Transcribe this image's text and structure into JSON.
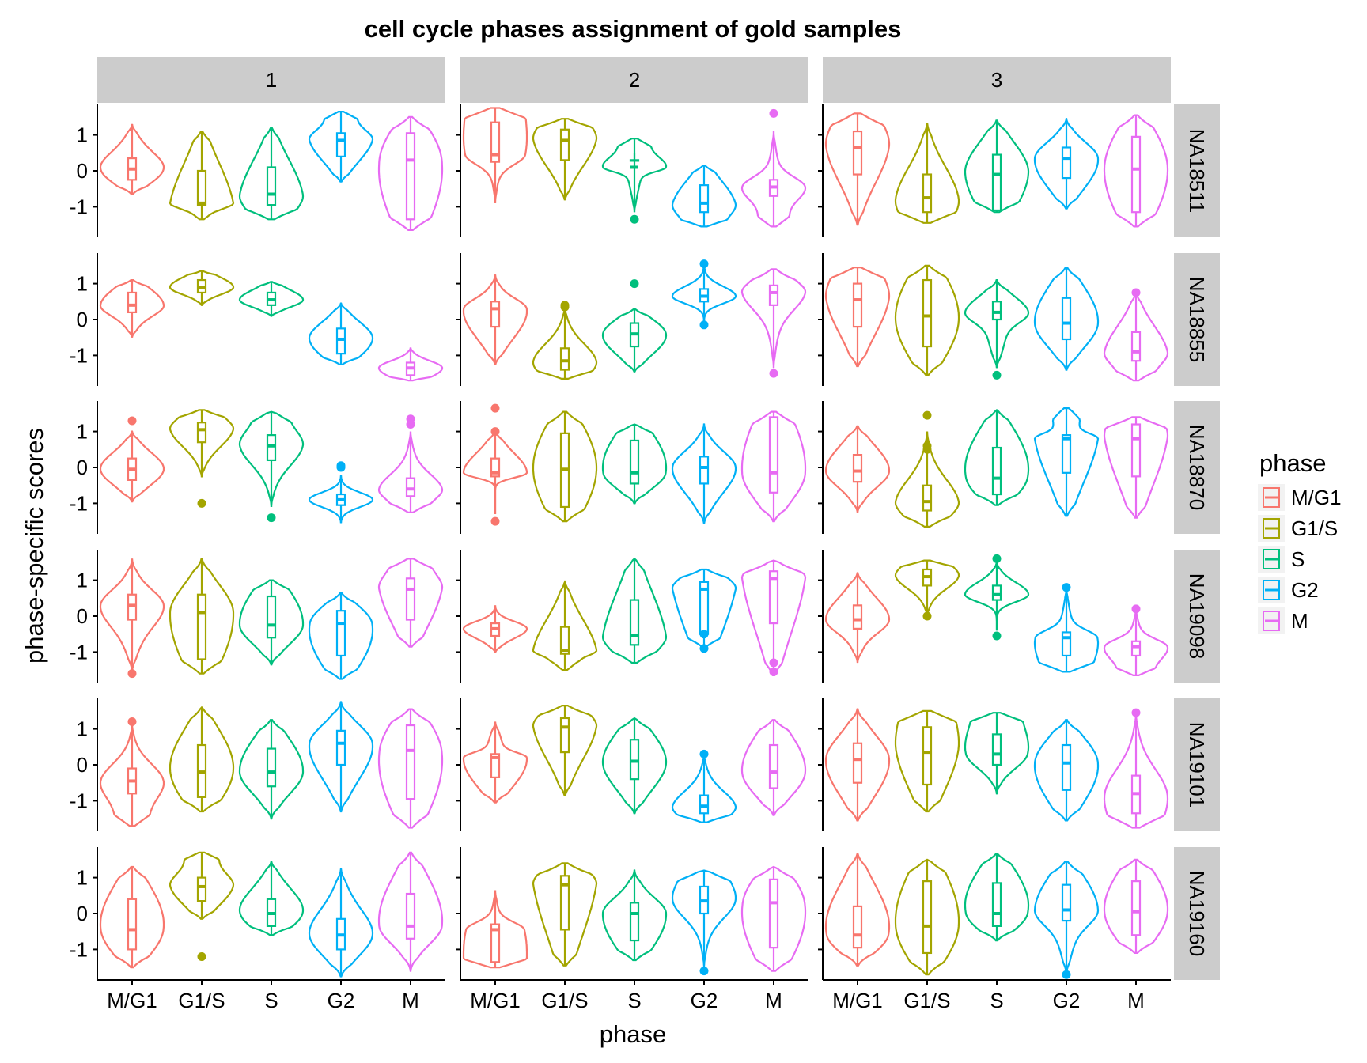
{
  "chart_data": {
    "type": "violin",
    "title": "cell cycle phases assignment of gold samples",
    "xlabel": "phase",
    "ylabel": "phase-specific scores",
    "ylim": [
      -1.85,
      1.85
    ],
    "yticks": [
      {
        "v": 1,
        "label": "1"
      },
      {
        "v": 0,
        "label": "0"
      },
      {
        "v": -1,
        "label": "-1"
      }
    ],
    "categories": [
      "M/G1",
      "G1/S",
      "S",
      "G2",
      "M"
    ],
    "col_facets": [
      "1",
      "2",
      "3"
    ],
    "row_facets": [
      "NA18511",
      "NA18855",
      "NA18870",
      "NA19098",
      "NA19101",
      "NA19160"
    ],
    "legend": {
      "title": "phase",
      "position": "right",
      "entries": [
        {
          "label": "M/G1",
          "color": "#F8766D"
        },
        {
          "label": "G1/S",
          "color": "#A3A500"
        },
        {
          "label": "S",
          "color": "#00BF7D"
        },
        {
          "label": "G2",
          "color": "#00B0F6"
        },
        {
          "label": "M",
          "color": "#E76BF3"
        }
      ]
    },
    "colors": {
      "strip_bg": "#CCCCCC",
      "axis": "#000000"
    },
    "stats_format": "per phase: [min, q1, median, q3, max, width_shape] where width_shape: 0=symmetric, 1=wide-top, -1=wide-bottom, 2=concentrated-center",
    "panels": [
      {
        "row": "NA18511",
        "col": "1",
        "stats": [
          [
            -0.65,
            -0.25,
            0.05,
            0.35,
            1.3,
            0
          ],
          [
            -1.35,
            -0.95,
            -0.9,
            0.0,
            1.1,
            -1
          ],
          [
            -1.35,
            -0.95,
            -0.65,
            0.1,
            1.2,
            -1
          ],
          [
            -0.3,
            0.4,
            0.85,
            1.05,
            1.65,
            1
          ],
          [
            -1.65,
            -1.35,
            0.3,
            1.05,
            1.5,
            0
          ]
        ],
        "outliers": [
          [],
          [],
          [],
          [],
          []
        ]
      },
      {
        "row": "NA18855",
        "col": "1",
        "stats": [
          [
            -0.5,
            0.2,
            0.4,
            0.75,
            1.1,
            0
          ],
          [
            0.4,
            0.75,
            0.9,
            1.1,
            1.35,
            2
          ],
          [
            0.1,
            0.4,
            0.55,
            0.75,
            1.05,
            2
          ],
          [
            -1.25,
            -0.95,
            -0.55,
            -0.25,
            0.45,
            0
          ],
          [
            -1.7,
            -1.55,
            -1.35,
            -1.2,
            -0.8,
            2
          ]
        ],
        "outliers": [
          [],
          [],
          [],
          [],
          []
        ]
      },
      {
        "row": "NA18870",
        "col": "1",
        "stats": [
          [
            -0.95,
            -0.35,
            -0.05,
            0.25,
            1.0,
            0
          ],
          [
            -0.25,
            0.7,
            1.05,
            1.25,
            1.6,
            1
          ],
          [
            -1.1,
            0.2,
            0.6,
            0.9,
            1.55,
            1
          ],
          [
            -1.55,
            -1.05,
            -0.9,
            -0.75,
            -0.2,
            2
          ],
          [
            -1.25,
            -0.8,
            -0.6,
            -0.3,
            1.0,
            -1
          ]
        ],
        "outliers": [
          [
            1.3
          ],
          [
            -1.0
          ],
          [
            -1.4
          ],
          [
            0.0,
            0.05
          ],
          [
            1.2,
            1.35
          ]
        ]
      },
      {
        "row": "NA19098",
        "col": "1",
        "stats": [
          [
            -1.55,
            -0.1,
            0.3,
            0.6,
            1.6,
            0
          ],
          [
            -1.6,
            -1.2,
            0.1,
            0.6,
            1.6,
            0
          ],
          [
            -1.35,
            -0.6,
            -0.25,
            0.55,
            1.0,
            0
          ],
          [
            -1.75,
            -1.1,
            -0.2,
            0.15,
            0.65,
            0
          ],
          [
            -0.85,
            -0.1,
            0.75,
            1.05,
            1.6,
            1
          ]
        ],
        "outliers": [
          [
            -1.6
          ],
          [],
          [],
          [],
          []
        ]
      },
      {
        "row": "NA19101",
        "col": "1",
        "stats": [
          [
            -1.7,
            -0.8,
            -0.45,
            -0.1,
            1.15,
            -1
          ],
          [
            -1.3,
            -0.9,
            -0.2,
            0.55,
            1.6,
            0
          ],
          [
            -1.5,
            -0.6,
            -0.2,
            0.45,
            1.25,
            0
          ],
          [
            -1.3,
            0.0,
            0.6,
            0.95,
            1.75,
            0
          ],
          [
            -1.75,
            -0.95,
            0.4,
            1.1,
            1.55,
            0
          ]
        ],
        "outliers": [
          [
            1.2
          ],
          [],
          [],
          [],
          []
        ]
      },
      {
        "row": "NA19160",
        "col": "1",
        "stats": [
          [
            -1.5,
            -1.0,
            -0.45,
            0.4,
            1.3,
            0
          ],
          [
            -0.15,
            0.35,
            0.75,
            1.0,
            1.7,
            1
          ],
          [
            -0.6,
            -0.35,
            0.0,
            0.4,
            1.45,
            0
          ],
          [
            -1.75,
            -1.0,
            -0.6,
            -0.15,
            1.25,
            0
          ],
          [
            -1.6,
            -0.7,
            -0.35,
            0.55,
            1.7,
            0
          ]
        ],
        "outliers": [
          [],
          [
            -1.2
          ],
          [],
          [],
          []
        ]
      },
      {
        "row": "NA18511",
        "col": "2",
        "stats": [
          [
            -0.9,
            0.25,
            0.45,
            1.35,
            1.75,
            1
          ],
          [
            -0.8,
            0.3,
            0.85,
            1.15,
            1.45,
            1
          ],
          [
            -1.15,
            0.5,
            0.1,
            0.3,
            0.9,
            1
          ],
          [
            -1.55,
            -1.15,
            -0.9,
            -0.4,
            0.15,
            -1
          ],
          [
            -1.55,
            -0.7,
            -0.45,
            -0.25,
            1.1,
            -1
          ]
        ],
        "outliers": [
          [],
          [],
          [
            -1.35
          ],
          [],
          [
            1.6
          ]
        ]
      },
      {
        "row": "NA18855",
        "col": "2",
        "stats": [
          [
            -1.25,
            -0.2,
            0.3,
            0.5,
            1.25,
            0
          ],
          [
            -1.65,
            -1.4,
            -1.15,
            -0.8,
            0.35,
            -1
          ],
          [
            -1.45,
            -0.75,
            -0.4,
            -0.1,
            0.3,
            0
          ],
          [
            -0.1,
            0.5,
            0.65,
            0.85,
            1.6,
            2
          ],
          [
            -1.35,
            0.4,
            0.75,
            0.95,
            1.4,
            1
          ]
        ],
        "outliers": [
          [],
          [
            0.35,
            0.4
          ],
          [
            1.0
          ],
          [
            -0.15,
            1.55
          ],
          [
            -1.5
          ]
        ]
      },
      {
        "row": "NA18870",
        "col": "2",
        "stats": [
          [
            -1.3,
            -0.25,
            -0.15,
            0.25,
            1.0,
            2
          ],
          [
            -1.5,
            -1.1,
            -0.05,
            0.95,
            1.55,
            0
          ],
          [
            -1.0,
            -0.45,
            -0.15,
            0.75,
            1.2,
            0
          ],
          [
            -1.55,
            -0.45,
            0.0,
            0.3,
            1.2,
            0
          ],
          [
            -1.5,
            -0.7,
            -0.15,
            1.4,
            1.55,
            0
          ]
        ],
        "outliers": [
          [
            -1.5,
            1.0,
            1.65
          ],
          [],
          [],
          [],
          []
        ]
      },
      {
        "row": "NA19098",
        "col": "2",
        "stats": [
          [
            -1.0,
            -0.55,
            -0.35,
            -0.2,
            0.3,
            2
          ],
          [
            -1.5,
            -1.05,
            -0.95,
            -0.3,
            0.95,
            -1
          ],
          [
            -1.3,
            -0.8,
            -0.55,
            0.45,
            1.6,
            -1
          ],
          [
            -0.85,
            -0.5,
            0.75,
            0.95,
            1.3,
            1
          ],
          [
            -1.65,
            -0.2,
            1.05,
            1.25,
            1.55,
            1
          ]
        ],
        "outliers": [
          [],
          [],
          [],
          [
            -0.5,
            -0.9
          ],
          [
            -1.3,
            -1.55
          ]
        ]
      },
      {
        "row": "NA19101",
        "col": "2",
        "stats": [
          [
            -1.05,
            -0.35,
            0.2,
            0.3,
            1.2,
            0
          ],
          [
            -0.85,
            0.35,
            1.05,
            1.3,
            1.65,
            1
          ],
          [
            -1.35,
            -0.4,
            0.1,
            0.7,
            1.3,
            0
          ],
          [
            -1.6,
            -1.35,
            -1.15,
            -0.85,
            0.3,
            -1
          ],
          [
            -1.4,
            -0.65,
            -0.2,
            0.55,
            1.25,
            0
          ]
        ],
        "outliers": [
          [],
          [],
          [],
          [
            0.3
          ],
          []
        ]
      },
      {
        "row": "NA19160",
        "col": "2",
        "stats": [
          [
            -1.5,
            -1.35,
            -0.45,
            -0.3,
            0.65,
            -1
          ],
          [
            -1.45,
            -0.45,
            0.8,
            1.05,
            1.4,
            1
          ],
          [
            -1.3,
            -0.75,
            0.0,
            0.3,
            1.2,
            0
          ],
          [
            -1.5,
            0.0,
            0.35,
            0.75,
            1.2,
            1
          ],
          [
            -1.6,
            -0.95,
            0.3,
            0.95,
            1.3,
            0
          ]
        ],
        "outliers": [
          [],
          [],
          [],
          [
            -1.6
          ],
          []
        ]
      },
      {
        "row": "NA18511",
        "col": "3",
        "stats": [
          [
            -1.5,
            -0.1,
            0.65,
            1.1,
            1.6,
            1
          ],
          [
            -1.45,
            -1.15,
            -0.75,
            -0.1,
            1.3,
            -1
          ],
          [
            -1.15,
            -1.1,
            -0.1,
            0.45,
            1.4,
            0
          ],
          [
            -1.05,
            -0.2,
            0.35,
            0.65,
            1.45,
            0
          ],
          [
            -1.55,
            -1.15,
            0.05,
            0.95,
            1.55,
            0
          ]
        ],
        "outliers": [
          [],
          [],
          [],
          [],
          []
        ]
      },
      {
        "row": "NA18855",
        "col": "3",
        "stats": [
          [
            -1.3,
            -0.2,
            0.55,
            1.0,
            1.45,
            1
          ],
          [
            -1.55,
            -0.75,
            0.1,
            1.1,
            1.5,
            0
          ],
          [
            -1.35,
            0.0,
            0.2,
            0.5,
            1.1,
            0
          ],
          [
            -1.4,
            -0.55,
            -0.1,
            0.6,
            1.45,
            0
          ],
          [
            -1.7,
            -1.15,
            -0.9,
            -0.35,
            0.75,
            -1
          ]
        ],
        "outliers": [
          [],
          [],
          [
            -1.55
          ],
          [],
          [
            0.75
          ]
        ]
      },
      {
        "row": "NA18870",
        "col": "3",
        "stats": [
          [
            -1.25,
            -0.4,
            -0.1,
            0.35,
            1.15,
            0
          ],
          [
            -1.65,
            -1.2,
            -0.95,
            -0.5,
            1.0,
            -1
          ],
          [
            -1.05,
            -0.75,
            -0.3,
            0.55,
            1.6,
            0
          ],
          [
            -1.35,
            -0.15,
            0.8,
            0.9,
            1.65,
            1
          ],
          [
            -1.4,
            -0.25,
            0.8,
            1.2,
            1.4,
            1
          ]
        ],
        "outliers": [
          [],
          [
            0.5,
            0.6,
            1.45
          ],
          [],
          [],
          []
        ]
      },
      {
        "row": "NA19098",
        "col": "3",
        "stats": [
          [
            -1.3,
            -0.35,
            -0.1,
            0.3,
            1.2,
            0
          ],
          [
            0.0,
            0.85,
            1.1,
            1.3,
            1.55,
            1
          ],
          [
            -0.4,
            0.45,
            0.6,
            0.85,
            1.5,
            2
          ],
          [
            -1.55,
            -1.1,
            -0.6,
            -0.45,
            0.8,
            -1
          ],
          [
            -1.65,
            -1.1,
            -0.85,
            -0.7,
            0.2,
            -1
          ]
        ],
        "outliers": [
          [],
          [
            0.0
          ],
          [
            -0.55,
            1.6
          ],
          [
            0.8
          ],
          [
            0.2
          ]
        ]
      },
      {
        "row": "NA19101",
        "col": "3",
        "stats": [
          [
            -1.55,
            -0.5,
            0.15,
            0.6,
            1.55,
            0
          ],
          [
            -1.3,
            -0.55,
            0.35,
            1.05,
            1.5,
            1
          ],
          [
            -0.8,
            0.0,
            0.3,
            0.85,
            1.45,
            1
          ],
          [
            -1.55,
            -0.7,
            0.05,
            0.55,
            1.25,
            0
          ],
          [
            -1.75,
            -1.35,
            -0.8,
            -0.3,
            1.45,
            -1
          ]
        ],
        "outliers": [
          [],
          [],
          [],
          [],
          [
            1.45
          ]
        ]
      },
      {
        "row": "NA19160",
        "col": "3",
        "stats": [
          [
            -1.45,
            -0.95,
            -0.6,
            0.2,
            1.65,
            0
          ],
          [
            -1.7,
            -1.1,
            -0.35,
            0.9,
            1.5,
            0
          ],
          [
            -0.75,
            -0.35,
            0.0,
            0.85,
            1.65,
            0
          ],
          [
            -1.7,
            -0.2,
            0.1,
            0.8,
            1.45,
            0
          ],
          [
            -1.1,
            -0.6,
            0.05,
            0.9,
            1.5,
            0
          ]
        ],
        "outliers": [
          [],
          [],
          [],
          [
            -1.7
          ],
          []
        ]
      }
    ]
  }
}
